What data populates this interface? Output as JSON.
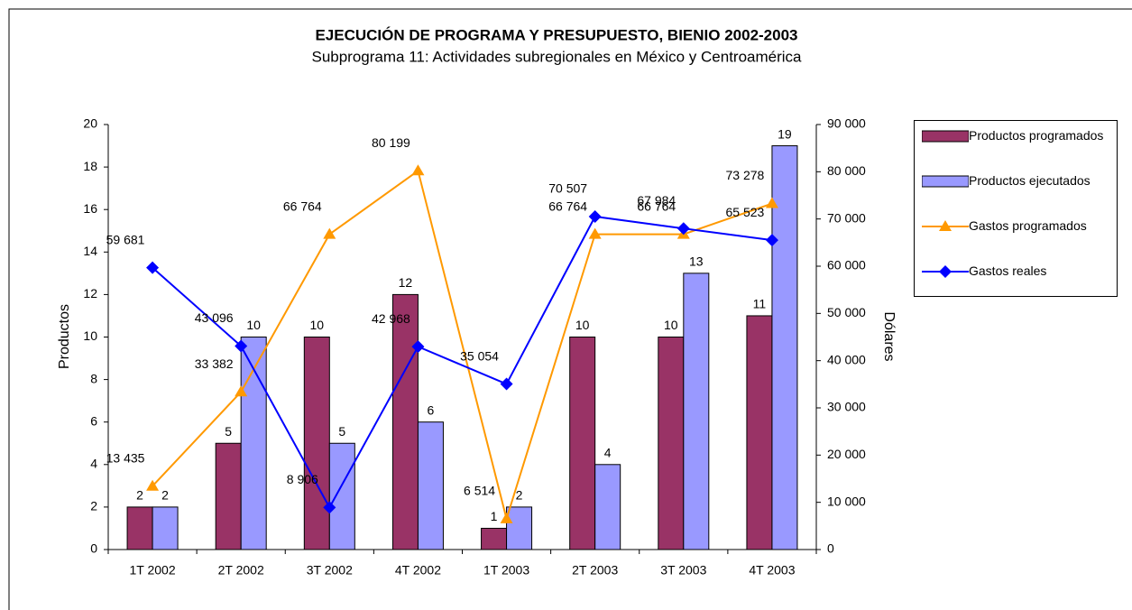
{
  "chart_data": {
    "type": "bar-line",
    "title": "EJECUCIÓN DE PROGRAMA Y PRESUPUESTO, BIENIO 2002-2003",
    "subtitle": "Subprograma 11: Actividades subregionales en México y Centroamérica",
    "y_label": "Productos",
    "y2_label": "Dólares",
    "categories": [
      "1T 2002",
      "2T 2002",
      "3T 2002",
      "4T 2002",
      "1T 2003",
      "2T 2003",
      "3T 2003",
      "4T 2003"
    ],
    "ylim": [
      0,
      20
    ],
    "yticks": [
      0,
      2,
      4,
      6,
      8,
      10,
      12,
      14,
      16,
      18,
      20
    ],
    "y2lim": [
      0,
      90000
    ],
    "y2ticks": [
      0,
      {
        "value": 10000,
        "label": "10 000"
      },
      {
        "value": 20000,
        "label": "20 000"
      },
      {
        "value": 30000,
        "label": "30 000"
      },
      {
        "value": 40000,
        "label": "40 000"
      },
      {
        "value": 50000,
        "label": "50 000"
      },
      {
        "value": 60000,
        "label": "60 000"
      },
      {
        "value": 70000,
        "label": "70 000"
      },
      {
        "value": 80000,
        "label": "80 000"
      },
      {
        "value": 90000,
        "label": "90 000"
      }
    ],
    "series": [
      {
        "name": "Productos programados",
        "type": "bar",
        "color": "#993366",
        "values": [
          2,
          5,
          10,
          12,
          1,
          10,
          10,
          11
        ]
      },
      {
        "name": "Productos ejecutados",
        "type": "bar",
        "color": "#9999ff",
        "values": [
          2,
          10,
          5,
          6,
          2,
          4,
          13,
          19
        ]
      },
      {
        "name": "Gastos programados",
        "type": "line",
        "axis": "y2",
        "marker": "triangle",
        "color": "#ff9900",
        "values": [
          13435,
          33382,
          66764,
          80199,
          6514,
          66764,
          66764,
          73278
        ],
        "value_labels": [
          "13 435",
          "33 382",
          "66 764",
          "80 199",
          "6 514",
          "66 764",
          "66 764",
          "73 278"
        ]
      },
      {
        "name": "Gastos reales",
        "type": "line",
        "axis": "y2",
        "marker": "diamond",
        "color": "#0000ff",
        "values": [
          59681,
          43096,
          8906,
          42968,
          35054,
          70507,
          67984,
          65523
        ],
        "value_labels": [
          "59 681",
          "43 096",
          "8 906",
          "42 968",
          "35 054",
          "70 507",
          "67 984",
          "65 523"
        ]
      }
    ],
    "legend": "right"
  }
}
